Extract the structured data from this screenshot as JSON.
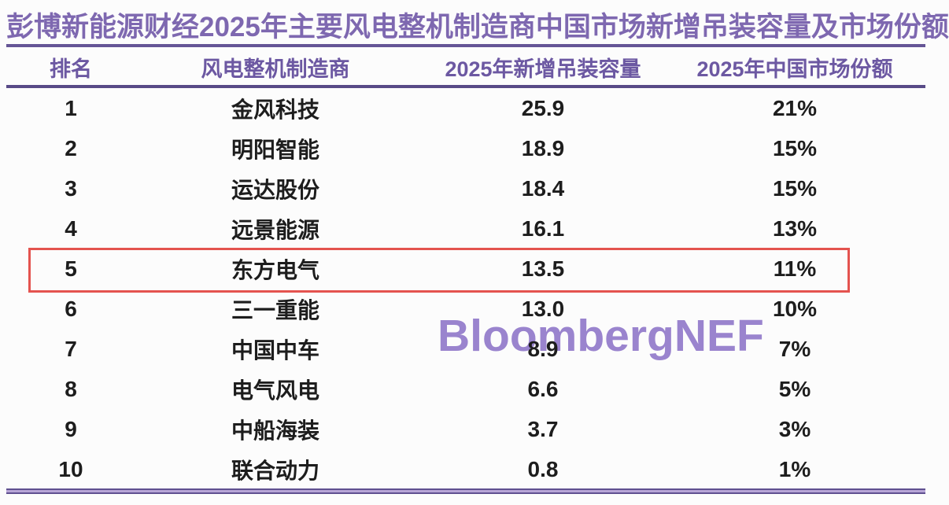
{
  "title": "彭博新能源财经2025年主要风电整机制造商中国市场新增吊装容量及市场份额",
  "watermark": "BloombergNEF",
  "table": {
    "columns": [
      "排名",
      "风电整机制造商",
      "2025年新增吊装容量",
      "2025年中国市场份额"
    ],
    "rows": [
      {
        "rank": "1",
        "manufacturer": "金风科技",
        "capacity": "25.9",
        "share": "21%"
      },
      {
        "rank": "2",
        "manufacturer": "明阳智能",
        "capacity": "18.9",
        "share": "15%"
      },
      {
        "rank": "3",
        "manufacturer": "运达股份",
        "capacity": "18.4",
        "share": "15%"
      },
      {
        "rank": "4",
        "manufacturer": "远景能源",
        "capacity": "16.1",
        "share": "13%"
      },
      {
        "rank": "5",
        "manufacturer": "东方电气",
        "capacity": "13.5",
        "share": "11%"
      },
      {
        "rank": "6",
        "manufacturer": "三一重能",
        "capacity": "13.0",
        "share": "10%"
      },
      {
        "rank": "7",
        "manufacturer": "中国中车",
        "capacity": "8.9",
        "share": "7%"
      },
      {
        "rank": "8",
        "manufacturer": "电气风电",
        "capacity": "6.6",
        "share": "5%"
      },
      {
        "rank": "9",
        "manufacturer": "中船海装",
        "capacity": "3.7",
        "share": "3%"
      },
      {
        "rank": "10",
        "manufacturer": "联合动力",
        "capacity": "0.8",
        "share": "1%"
      }
    ],
    "highlighted_rank": "5"
  },
  "colors": {
    "title_purple": "#7e68b0",
    "header_purple": "#6c58a2",
    "rule_purple": "#655596",
    "watermark_purple": "#8d74c8",
    "highlight_red": "#e4534f",
    "text_dark": "#1d1d1d",
    "bottom_line_light": "#b7a5d6",
    "page_bg": "#fcfcfc"
  },
  "chart_data": {
    "type": "table",
    "title": "彭博新能源财经2025年主要风电整机制造商中国市场新增吊装容量及市场份额",
    "columns": [
      "排名",
      "风电整机制造商",
      "2025年新增吊装容量",
      "2025年中国市场份额"
    ],
    "rows": [
      [
        "1",
        "金风科技",
        25.9,
        "21%"
      ],
      [
        "2",
        "明阳智能",
        18.9,
        "15%"
      ],
      [
        "3",
        "运达股份",
        18.4,
        "15%"
      ],
      [
        "4",
        "远景能源",
        16.1,
        "13%"
      ],
      [
        "5",
        "东方电气",
        13.5,
        "11%"
      ],
      [
        "6",
        "三一重能",
        13.0,
        "10%"
      ],
      [
        "7",
        "中国中车",
        8.9,
        "7%"
      ],
      [
        "8",
        "电气风电",
        6.6,
        "5%"
      ],
      [
        "9",
        "中船海装",
        3.7,
        "3%"
      ],
      [
        "10",
        "联合动力",
        0.8,
        "1%"
      ]
    ],
    "highlighted_row_rank": "5",
    "annotations": [
      "BloombergNEF"
    ]
  }
}
